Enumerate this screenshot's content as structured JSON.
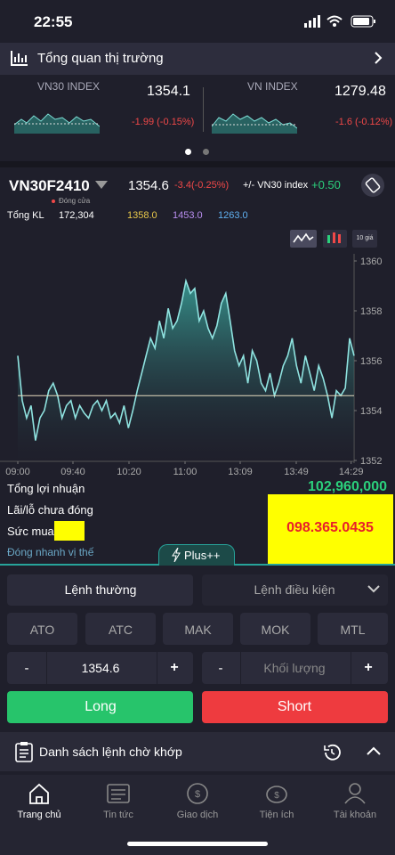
{
  "status_bar": {
    "time": "22:55"
  },
  "market_overview": {
    "title": "Tổng quan thị trường"
  },
  "indices": [
    {
      "name": "VN30 INDEX",
      "value": "1354.1",
      "change": "-1.99 (-0.15%)"
    },
    {
      "name": "VN INDEX",
      "value": "1279.48",
      "change": "-1.6 (-0.12%)"
    }
  ],
  "contract": {
    "symbol": "VN30F2410",
    "status": "Đóng cửa",
    "price": "1354.6",
    "change": "-3.4(-0.25%)",
    "basis_label": "+/- VN30 index",
    "basis": "+0.50",
    "volume_label": "Tổng KL",
    "volume": "172,304",
    "reference": "1358.0",
    "ceiling": "1453.0",
    "floor": "1263.0"
  },
  "chart_buttons": {
    "depth": "10 giá"
  },
  "chart_data": {
    "type": "line",
    "color": "#8fe3e0",
    "reference_line": 1354.6,
    "x": [
      0,
      3,
      6,
      9,
      12,
      15,
      18,
      21,
      24,
      27,
      30,
      33,
      36,
      39,
      42,
      45,
      48,
      51,
      54,
      57,
      60,
      63,
      66,
      69,
      72,
      75,
      78,
      81,
      84,
      87,
      90,
      93,
      96,
      99,
      102,
      105,
      108,
      111,
      114,
      117,
      120,
      123,
      126,
      129,
      132,
      135,
      138,
      141,
      144,
      147,
      150,
      153,
      156,
      159,
      162,
      165,
      168,
      171,
      174,
      177,
      180,
      183,
      186,
      189,
      192,
      195,
      198,
      201,
      204,
      207,
      210,
      213,
      216,
      219,
      222,
      225,
      228
    ],
    "values": [
      1356.2,
      1354.4,
      1353.7,
      1354.2,
      1352.8,
      1353.7,
      1354.0,
      1354.8,
      1355.1,
      1354.6,
      1353.7,
      1354.2,
      1354.4,
      1353.7,
      1354.2,
      1353.9,
      1353.7,
      1354.2,
      1354.4,
      1354.0,
      1354.4,
      1353.7,
      1353.9,
      1353.5,
      1354.2,
      1353.3,
      1354.0,
      1354.8,
      1355.5,
      1356.2,
      1356.9,
      1356.5,
      1357.6,
      1356.9,
      1358.1,
      1357.3,
      1357.6,
      1358.3,
      1359.2,
      1358.7,
      1358.9,
      1357.6,
      1358.0,
      1357.3,
      1356.9,
      1357.4,
      1358.3,
      1358.7,
      1357.6,
      1356.4,
      1355.8,
      1356.2,
      1355.1,
      1356.4,
      1356.0,
      1355.1,
      1354.8,
      1355.5,
      1354.6,
      1355.1,
      1355.8,
      1356.2,
      1356.9,
      1355.8,
      1355.1,
      1356.2,
      1355.5,
      1354.8,
      1355.8,
      1355.3,
      1354.6,
      1353.7,
      1354.8,
      1354.6,
      1354.9,
      1356.9,
      1356.2
    ],
    "xlim": [
      0,
      228
    ],
    "xticks": [
      {
        "value": 0,
        "label": "09:00"
      },
      {
        "value": 37.4,
        "label": "09:40"
      },
      {
        "value": 75.4,
        "label": "10:20"
      },
      {
        "value": 113.4,
        "label": "11:00"
      },
      {
        "value": 150.8,
        "label": "13:09"
      },
      {
        "value": 188.8,
        "label": "13:49"
      },
      {
        "value": 226,
        "label": "14:29"
      }
    ],
    "ylim": [
      1352,
      1360
    ],
    "yticks": [
      1352,
      1354,
      1356,
      1358,
      1360
    ]
  },
  "summary": {
    "total_profit_label": "Tổng lợi nhuận",
    "total_profit": "102,960,000",
    "unrealized_label": "Lãi/lỗ chưa đóng",
    "buying_power_label": "Sức mua",
    "quick_close": "Đóng nhanh vị thế",
    "plus": "Plus++",
    "phone": "098.365.0435"
  },
  "order": {
    "tabs": [
      "Lệnh thường",
      "Lệnh điều kiện"
    ],
    "types": [
      "ATO",
      "ATC",
      "MAK",
      "MOK",
      "MTL"
    ],
    "minus": "-",
    "plus": "+",
    "price": "1354.6",
    "quantity": "Khối lượng",
    "long": "Long",
    "short": "Short"
  },
  "pending": {
    "title": "Danh sách lệnh chờ khớp"
  },
  "nav": [
    "Trang chủ",
    "Tin tức",
    "Giao dịch",
    "Tiện ích",
    "Tài khoản"
  ]
}
